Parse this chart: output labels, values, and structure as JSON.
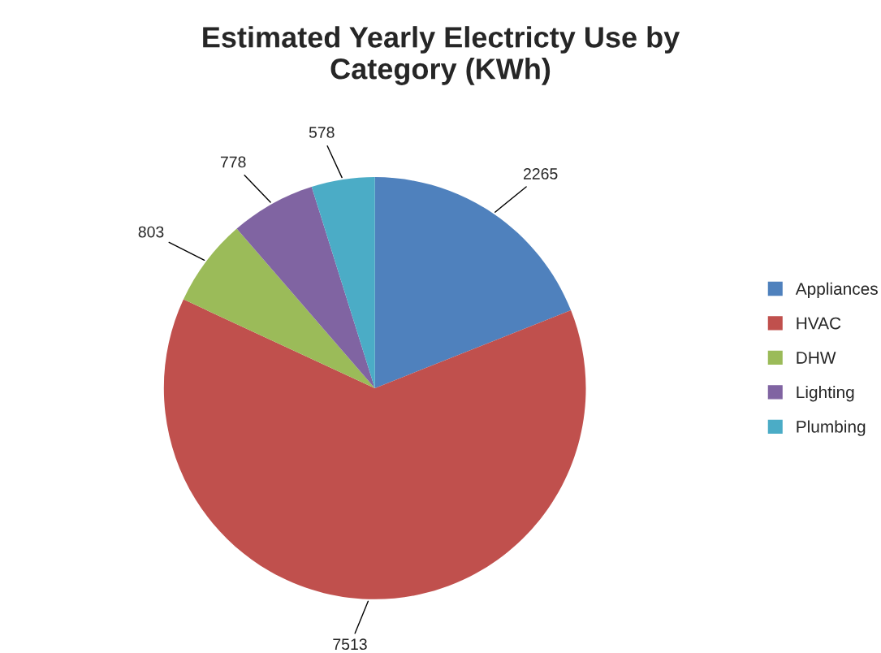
{
  "chart_data": {
    "type": "pie",
    "title": "Estimated Yearly Electricty Use by\nCategory (KWh)",
    "categories": [
      "Appliances",
      "HVAC",
      "DHW",
      "Lighting",
      "Plumbing"
    ],
    "values": [
      2265,
      7513,
      803,
      778,
      578
    ],
    "colors": [
      "#4f81bd",
      "#c0504d",
      "#9bbb59",
      "#8064a2",
      "#4bacc6"
    ],
    "data_labels": true,
    "legend": "right"
  }
}
